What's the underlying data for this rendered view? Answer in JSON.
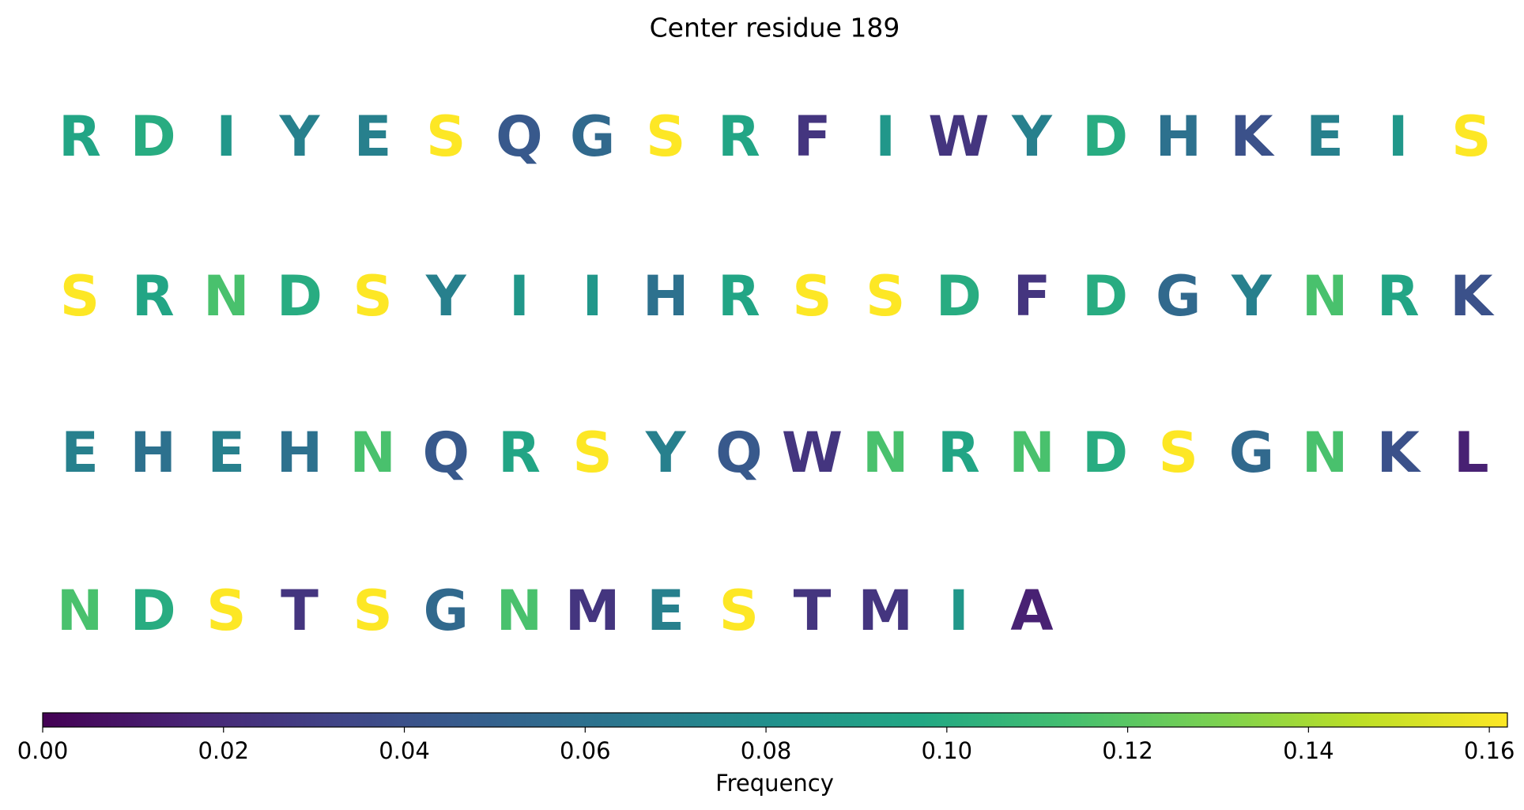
{
  "chart_data": {
    "type": "sequence",
    "title": "Center residue 189",
    "letters": [
      "R",
      "D",
      "I",
      "Y",
      "E",
      "S",
      "Q",
      "G",
      "S",
      "R",
      "F",
      "I",
      "W",
      "Y",
      "D",
      "H",
      "K",
      "E",
      "I",
      "S",
      "S",
      "R",
      "N",
      "D",
      "S",
      "Y",
      "I",
      "I",
      "H",
      "R",
      "S",
      "S",
      "D",
      "F",
      "D",
      "G",
      "Y",
      "N",
      "R",
      "K",
      "E",
      "H",
      "E",
      "H",
      "N",
      "Q",
      "R",
      "S",
      "Y",
      "Q",
      "W",
      "N",
      "R",
      "N",
      "D",
      "S",
      "G",
      "N",
      "K",
      "L",
      "N",
      "D",
      "S",
      "T",
      "S",
      "G",
      "N",
      "M",
      "E",
      "S",
      "T",
      "M",
      "I",
      "A"
    ],
    "values": [
      0.095,
      0.1,
      0.085,
      0.07,
      0.07,
      0.162,
      0.045,
      0.055,
      0.162,
      0.095,
      0.025,
      0.085,
      0.025,
      0.07,
      0.1,
      0.06,
      0.04,
      0.07,
      0.085,
      0.162,
      0.162,
      0.095,
      0.115,
      0.1,
      0.162,
      0.07,
      0.085,
      0.085,
      0.06,
      0.095,
      0.162,
      0.162,
      0.1,
      0.025,
      0.1,
      0.055,
      0.07,
      0.115,
      0.095,
      0.04,
      0.07,
      0.06,
      0.07,
      0.06,
      0.115,
      0.045,
      0.095,
      0.162,
      0.07,
      0.045,
      0.025,
      0.115,
      0.095,
      0.115,
      0.1,
      0.162,
      0.055,
      0.115,
      0.04,
      0.015,
      0.115,
      0.1,
      0.162,
      0.025,
      0.162,
      0.055,
      0.115,
      0.025,
      0.07,
      0.162,
      0.025,
      0.025,
      0.085,
      0.015
    ],
    "colormap": "viridis",
    "colorbar_label": "Frequency",
    "clim": [
      0,
      0.162
    ],
    "cticks": [
      {
        "value": 0,
        "label": "0.00"
      },
      {
        "value": 0.02,
        "label": "0.02"
      },
      {
        "value": 0.04,
        "label": "0.04"
      },
      {
        "value": 0.06,
        "label": "0.06"
      },
      {
        "value": 0.08,
        "label": "0.08"
      },
      {
        "value": 0.1,
        "label": "0.10"
      },
      {
        "value": 0.12,
        "label": "0.12"
      },
      {
        "value": 0.14,
        "label": "0.14"
      },
      {
        "value": 0.16,
        "label": "0.16"
      }
    ]
  }
}
